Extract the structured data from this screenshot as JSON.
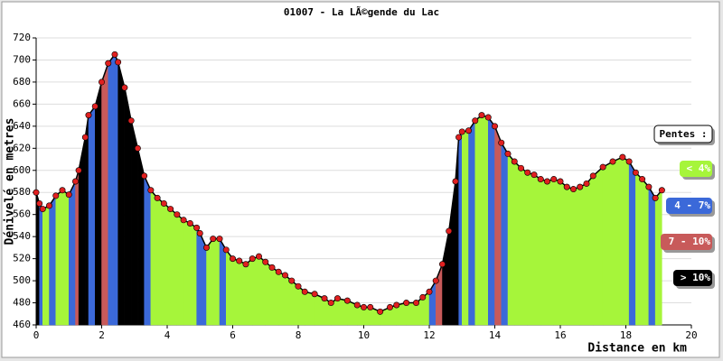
{
  "chart_data": {
    "type": "area",
    "title": "01007 - La LÃ©gende du Lac",
    "y_label": "Dénivelé en metres",
    "x_label": "Distance en km",
    "xlim": [
      0,
      20
    ],
    "xticks": [
      0,
      2,
      4,
      6,
      8,
      10,
      12,
      14,
      16,
      18,
      20
    ],
    "ylim": [
      460,
      720
    ],
    "yticks": [
      460,
      480,
      500,
      520,
      540,
      560,
      580,
      600,
      620,
      640,
      660,
      680,
      700,
      720
    ],
    "grid": true,
    "legend_title": "Pentes :",
    "thresholds": [
      4,
      7,
      10
    ],
    "slope_classes": [
      {
        "name": "< 4%",
        "color": "#a6f53a"
      },
      {
        "name": "4 - 7%",
        "color": "#3b69d9"
      },
      {
        "name": "7 - 10%",
        "color": "#c85a5a"
      },
      {
        "name": "> 10%",
        "color": "#000000"
      }
    ],
    "marker_color": "#e02020",
    "x": [
      0,
      0.1,
      0.2,
      0.4,
      0.6,
      0.8,
      1.0,
      1.2,
      1.3,
      1.5,
      1.6,
      1.8,
      2.0,
      2.2,
      2.4,
      2.5,
      2.7,
      2.9,
      3.1,
      3.3,
      3.5,
      3.7,
      3.9,
      4.1,
      4.3,
      4.5,
      4.7,
      4.9,
      5.0,
      5.2,
      5.4,
      5.6,
      5.8,
      6.0,
      6.2,
      6.4,
      6.6,
      6.8,
      7.0,
      7.2,
      7.4,
      7.6,
      7.8,
      8.0,
      8.2,
      8.5,
      8.8,
      9.0,
      9.2,
      9.5,
      9.8,
      10.0,
      10.2,
      10.5,
      10.8,
      11.0,
      11.3,
      11.6,
      11.8,
      12.0,
      12.2,
      12.4,
      12.6,
      12.8,
      12.9,
      13.0,
      13.2,
      13.4,
      13.6,
      13.8,
      14.0,
      14.2,
      14.4,
      14.6,
      14.8,
      15.0,
      15.2,
      15.4,
      15.6,
      15.8,
      16.0,
      16.2,
      16.4,
      16.6,
      16.8,
      17.0,
      17.3,
      17.6,
      17.9,
      18.1,
      18.3,
      18.5,
      18.7,
      18.9,
      19.1
    ],
    "values": [
      580,
      570,
      565,
      568,
      577,
      582,
      578,
      590,
      600,
      630,
      650,
      658,
      680,
      697,
      705,
      698,
      675,
      645,
      620,
      595,
      582,
      575,
      570,
      565,
      560,
      555,
      552,
      548,
      543,
      530,
      538,
      538,
      528,
      520,
      518,
      515,
      520,
      522,
      517,
      512,
      508,
      505,
      500,
      495,
      490,
      488,
      484,
      480,
      484,
      482,
      478,
      476,
      476,
      472,
      476,
      478,
      480,
      480,
      485,
      490,
      500,
      515,
      545,
      590,
      630,
      635,
      636,
      645,
      650,
      648,
      640,
      625,
      615,
      608,
      602,
      598,
      596,
      592,
      590,
      592,
      590,
      585,
      583,
      585,
      588,
      595,
      603,
      608,
      612,
      608,
      598,
      592,
      585,
      575,
      582
    ]
  }
}
